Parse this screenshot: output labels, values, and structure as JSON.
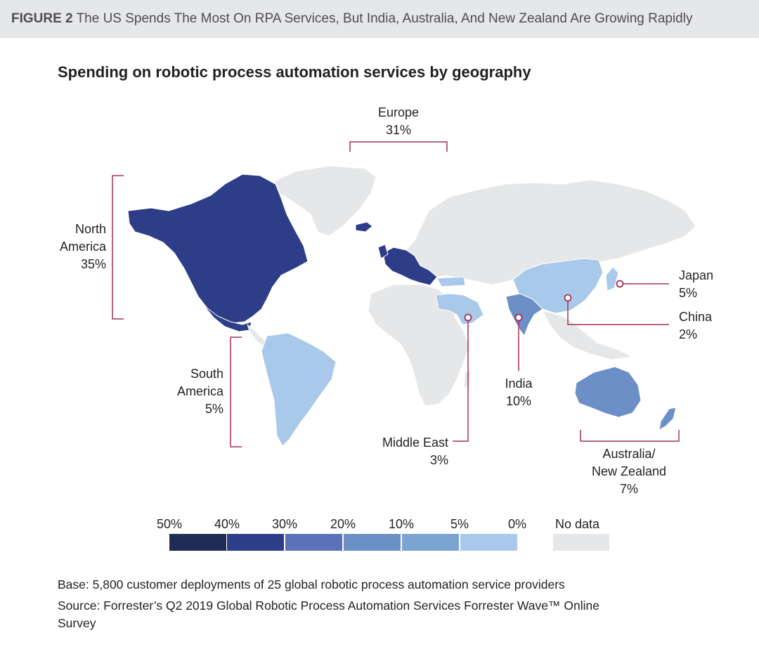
{
  "figure": {
    "number_label": "FIGURE 2",
    "title": "The US Spends The Most On RPA Services, But India, Australia, And New Zealand Are Growing Rapidly"
  },
  "map": {
    "title": "Spending on robotic process automation services by geography",
    "regions": {
      "europe": {
        "name": "Europe",
        "value": "31%"
      },
      "north_america": {
        "name_line1": "North",
        "name_line2": "America",
        "value": "35%"
      },
      "south_america": {
        "name_line1": "South",
        "name_line2": "America",
        "value": "5%"
      },
      "middle_east": {
        "name": "Middle East",
        "value": "3%"
      },
      "india": {
        "name": "India",
        "value": "10%"
      },
      "japan": {
        "name": "Japan",
        "value": "5%"
      },
      "china": {
        "name": "China",
        "value": "2%"
      },
      "anz": {
        "name_line1": "Australia/",
        "name_line2": "New Zealand",
        "value": "7%"
      }
    },
    "colors": {
      "no_data": "#e6e7e8",
      "scale_50": "#1f2d55",
      "scale_40": "#2e3d87",
      "scale_30": "#5c72b8",
      "scale_20": "#6b8fc6",
      "scale_10": "#7ba4d3",
      "scale_5": "#a9c9ea",
      "leader": "#a3305a"
    }
  },
  "legend": {
    "ticks": [
      "50%",
      "40%",
      "30%",
      "20%",
      "10%",
      "5%",
      "0%"
    ],
    "no_data_label": "No data"
  },
  "footer": {
    "base": "Base: 5,800 customer deployments of 25 global robotic process automation service providers",
    "source_line1": "Source: Forrester’s Q2 2019 Global Robotic Process Automation Services Forrester Wave™ Online",
    "source_line2": "Survey"
  }
}
